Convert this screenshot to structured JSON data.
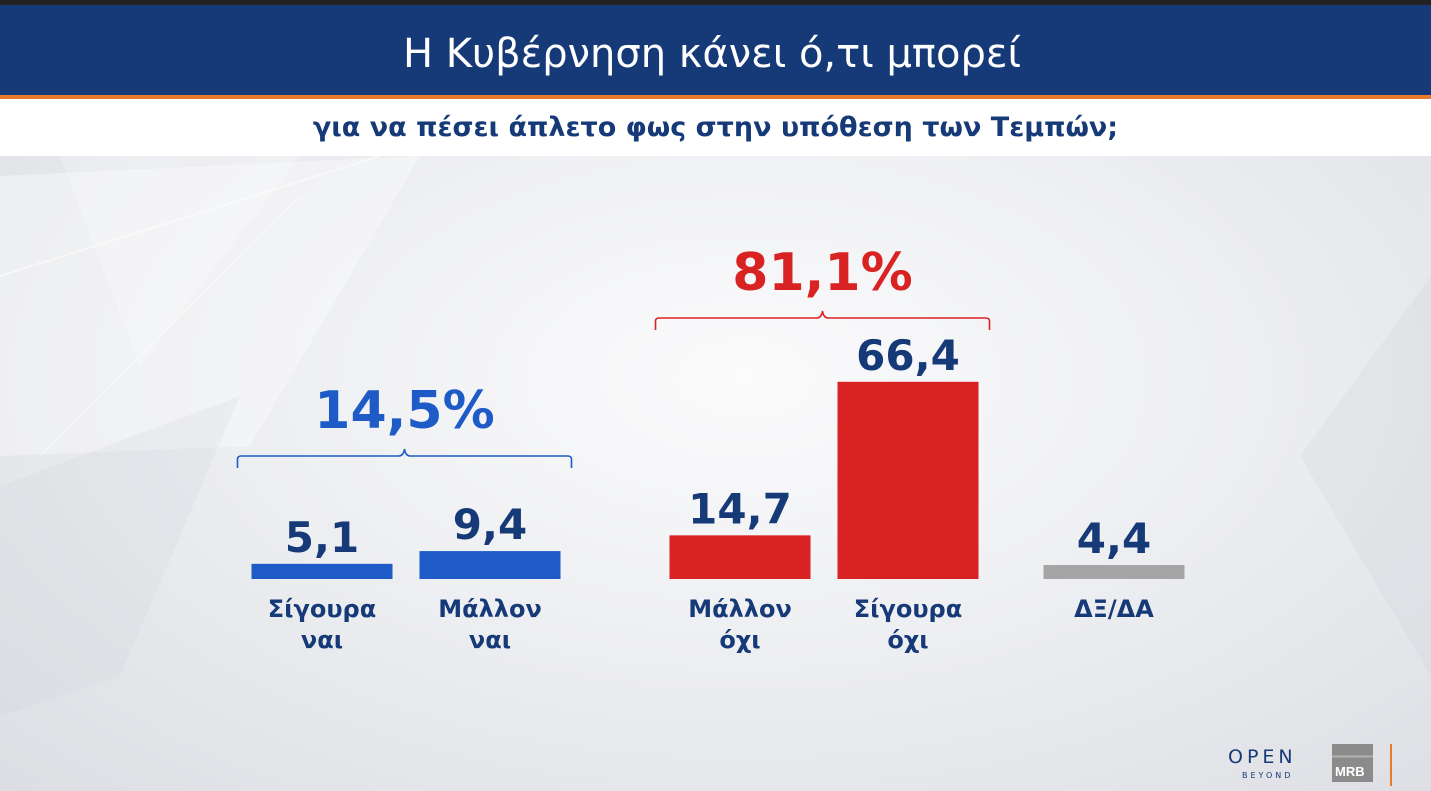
{
  "header": {
    "title": "Η Κυβέρνηση κάνει ό,τι μπορεί",
    "subtitle": "για να πέσει άπλετο φως στην υπόθεση των Τεμπών;"
  },
  "colors": {
    "header_bg": "#163a78",
    "accent_orange": "#e87a2c",
    "yes_blue": "#1e5bc6",
    "no_red": "#d92323",
    "dk_gray": "#a5a5a5",
    "label_navy": "#163a78"
  },
  "chart_data": {
    "type": "bar",
    "title": "",
    "xlabel": "",
    "ylabel": "",
    "ylim": [
      0,
      70
    ],
    "grid": false,
    "legend": "none",
    "categories": [
      {
        "lines": [
          "Σίγουρα",
          "ναι"
        ],
        "value": 5.1,
        "value_label": "5,1",
        "color": "#1e5bc6",
        "label_color": "#163a78"
      },
      {
        "lines": [
          "Μάλλον",
          "ναι"
        ],
        "value": 9.4,
        "value_label": "9,4",
        "color": "#1e5bc6",
        "label_color": "#163a78"
      },
      {
        "lines": [
          "Μάλλον",
          "όχι"
        ],
        "value": 14.7,
        "value_label": "14,7",
        "color": "#d92323",
        "label_color": "#163a78"
      },
      {
        "lines": [
          "Σίγουρα",
          "όχι"
        ],
        "value": 66.4,
        "value_label": "66,4",
        "color": "#d92323",
        "label_color": "#163a78"
      },
      {
        "lines": [
          "ΔΞ/ΔΑ"
        ],
        "value": 4.4,
        "value_label": "4,4",
        "color": "#a5a5a5",
        "label_color": "#163a78"
      }
    ],
    "groups": [
      {
        "label": "14,5%",
        "from": 0,
        "to": 1,
        "color": "#1e5bc6"
      },
      {
        "label": "81,1%",
        "from": 2,
        "to": 3,
        "color": "#d92323"
      }
    ]
  },
  "logos": {
    "open": "OPEN",
    "open_sub": "BEYOND",
    "mrb": "MRB"
  }
}
